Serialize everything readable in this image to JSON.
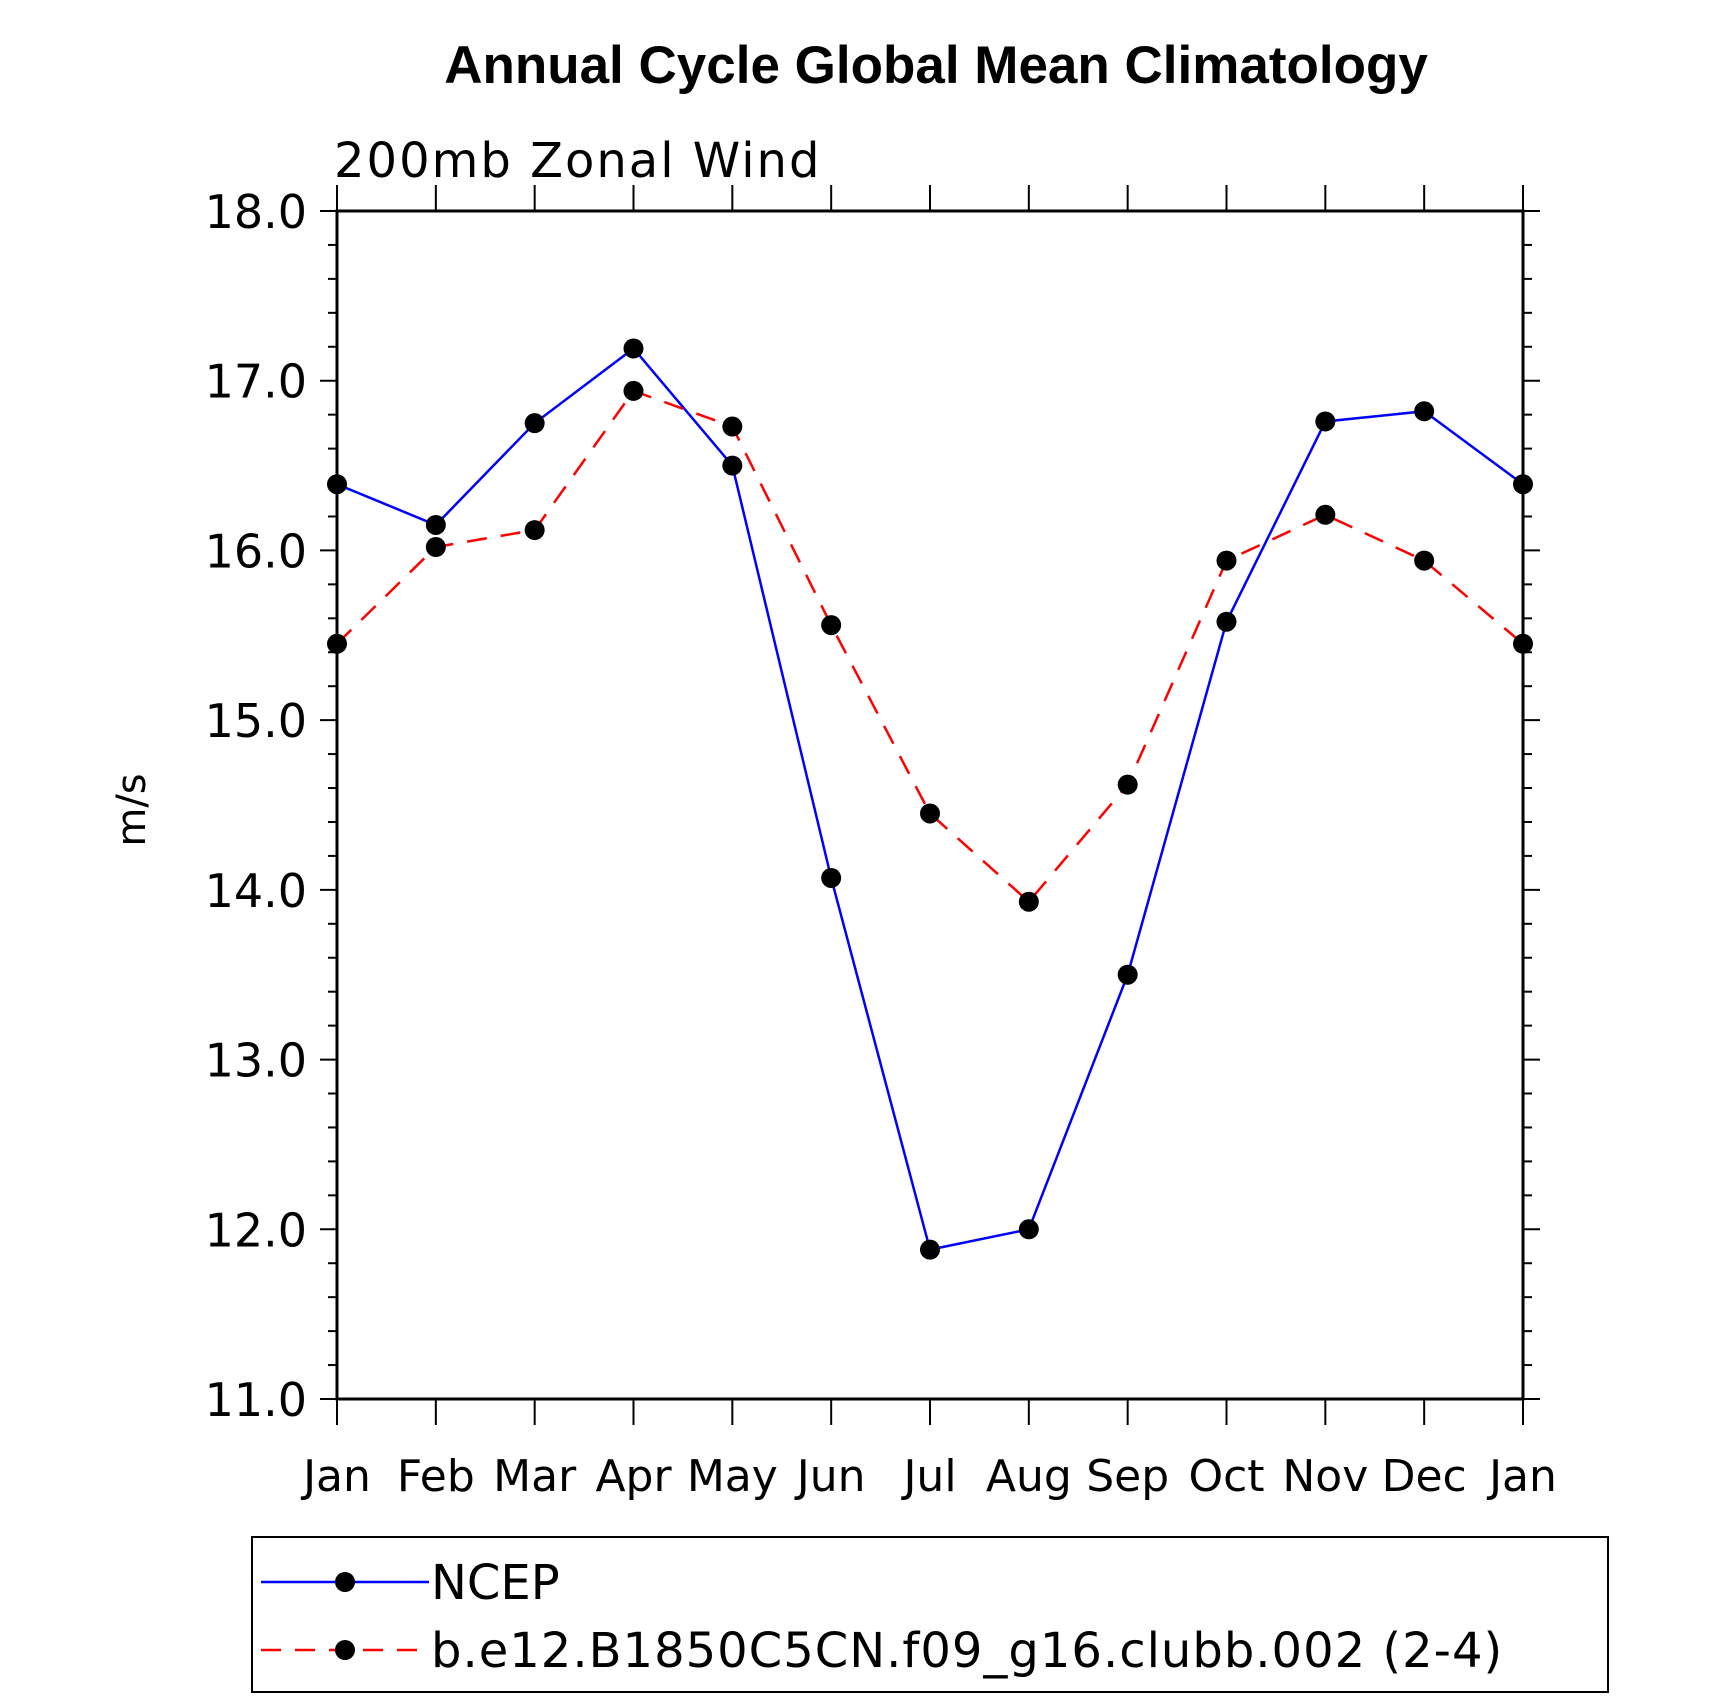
{
  "chart_data": {
    "type": "line",
    "title": "Annual Cycle Global Mean Climatology",
    "subtitle": "200mb Zonal Wind",
    "ylabel": "m/s",
    "xlabel": "",
    "ylim": [
      11.0,
      18.0
    ],
    "y_major_ticks": [
      "11.0",
      "12.0",
      "13.0",
      "14.0",
      "15.0",
      "16.0",
      "17.0",
      "18.0"
    ],
    "y_minor_step": 0.2,
    "categories": [
      "Jan",
      "Feb",
      "Mar",
      "Apr",
      "May",
      "Jun",
      "Jul",
      "Aug",
      "Sep",
      "Oct",
      "Nov",
      "Dec",
      "Jan"
    ],
    "series": [
      {
        "name": "NCEP",
        "color": "#0000ff",
        "dash": "solid",
        "marker": "filled-circle",
        "values": [
          16.39,
          16.15,
          16.75,
          17.19,
          16.5,
          14.07,
          11.88,
          12.0,
          13.5,
          15.58,
          16.76,
          16.82,
          16.39
        ]
      },
      {
        "name": "b.e12.B1850C5CN.f09_g16.clubb.002 (2-4)",
        "color": "#ff0000",
        "dash": "dashed",
        "marker": "filled-circle",
        "values": [
          15.45,
          16.02,
          16.12,
          16.94,
          16.73,
          15.56,
          14.45,
          13.93,
          14.62,
          15.94,
          16.21,
          15.94,
          15.45
        ]
      }
    ],
    "legend_position": "bottom",
    "grid": false
  }
}
